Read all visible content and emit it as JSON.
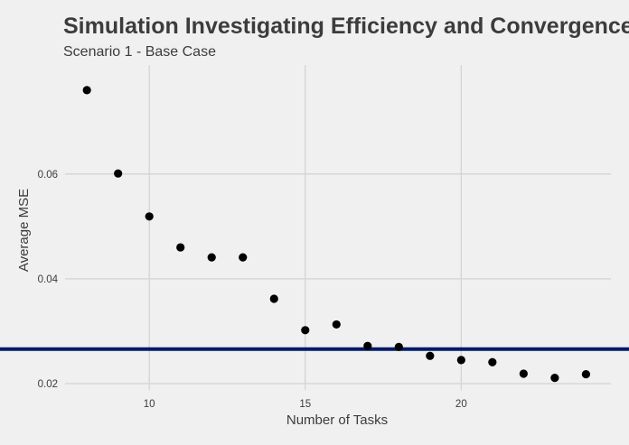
{
  "chart_data": {
    "type": "scatter",
    "title": "Simulation Investigating Efficiency and Convergence",
    "subtitle": "Scenario 1 - Base Case",
    "xlabel": "Number of Tasks",
    "ylabel": "Average MSE",
    "xlim": [
      7.3,
      24.8
    ],
    "ylim": [
      0.0188,
      0.0808
    ],
    "x_ticks": [
      10,
      15,
      20
    ],
    "y_ticks": [
      0.02,
      0.04,
      0.06
    ],
    "x_tick_labels": [
      "10",
      "15",
      "20"
    ],
    "y_tick_labels": [
      "0.02",
      "0.04",
      "0.06"
    ],
    "grid": true,
    "background": "#f0f0f0",
    "point_color": "#000000",
    "reference_line": {
      "y": 0.0266,
      "color": "#001a66"
    },
    "points": [
      {
        "x": 8,
        "y": 0.076
      },
      {
        "x": 9,
        "y": 0.0601
      },
      {
        "x": 10,
        "y": 0.0519
      },
      {
        "x": 11,
        "y": 0.046
      },
      {
        "x": 12,
        "y": 0.0441
      },
      {
        "x": 13,
        "y": 0.0441
      },
      {
        "x": 14,
        "y": 0.0362
      },
      {
        "x": 15,
        "y": 0.0302
      },
      {
        "x": 16,
        "y": 0.0313
      },
      {
        "x": 17,
        "y": 0.0272
      },
      {
        "x": 18,
        "y": 0.027
      },
      {
        "x": 19,
        "y": 0.0253
      },
      {
        "x": 20,
        "y": 0.0245
      },
      {
        "x": 21,
        "y": 0.0241
      },
      {
        "x": 22,
        "y": 0.0219
      },
      {
        "x": 23,
        "y": 0.0211
      },
      {
        "x": 24,
        "y": 0.0218
      }
    ]
  }
}
